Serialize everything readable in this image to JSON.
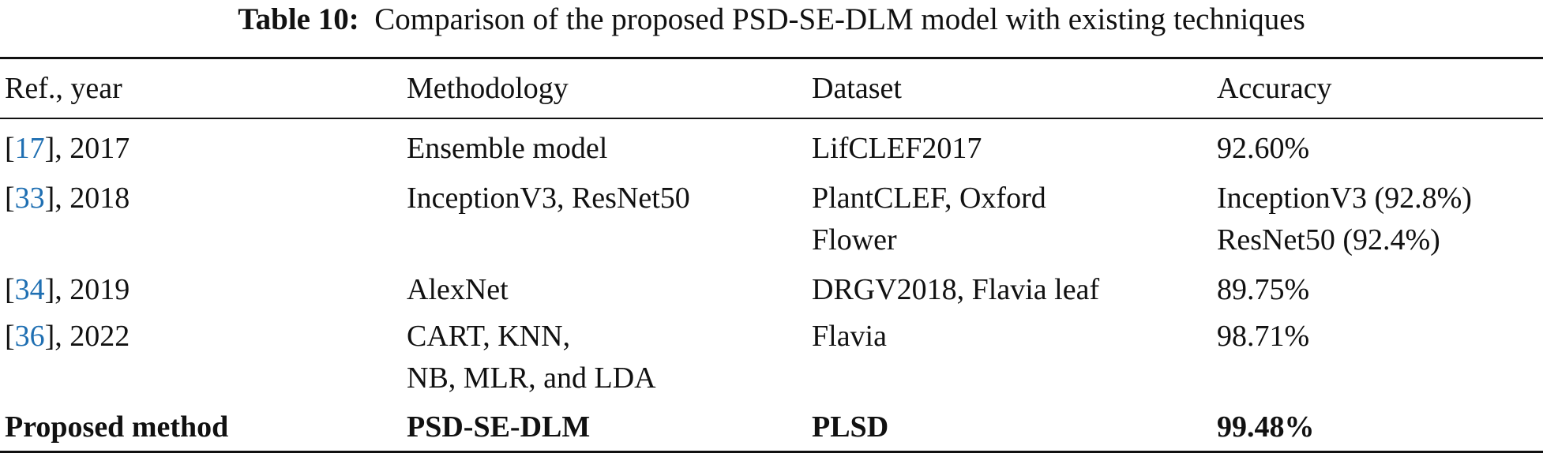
{
  "table": {
    "caption_label": "Table 10:",
    "caption_text": "Comparison of the proposed PSD-SE-DLM model with existing techniques",
    "header": [
      "Ref., year",
      "Methodology",
      "Dataset",
      "Accuracy"
    ],
    "rows": [
      [
        [
          "[",
          "17",
          "], 2017"
        ],
        [
          "Ensemble model"
        ],
        [
          "LifCLEF2017"
        ],
        [
          "92.60%"
        ]
      ],
      [
        [
          "[",
          "33",
          "], 2018"
        ],
        [
          "InceptionV3, ResNet50"
        ],
        [
          "PlantCLEF, Oxford",
          "Flower"
        ],
        [
          "InceptionV3 (92.8%)",
          "ResNet50 (92.4%)"
        ]
      ],
      [
        [
          "[",
          "34",
          "], 2019"
        ],
        [
          "AlexNet"
        ],
        [
          "DRGV2018, Flavia leaf"
        ],
        [
          "89.75%"
        ]
      ],
      [
        [
          "[",
          "36",
          "], 2022"
        ],
        [
          "CART, KNN,",
          "NB, MLR, and LDA"
        ],
        [
          "Flavia"
        ],
        [
          "98.71%"
        ]
      ],
      [
        [
          "Proposed method"
        ],
        [
          "PSD-SE-DLM"
        ],
        [
          "PLSD"
        ],
        [
          "99.48%"
        ]
      ]
    ]
  }
}
